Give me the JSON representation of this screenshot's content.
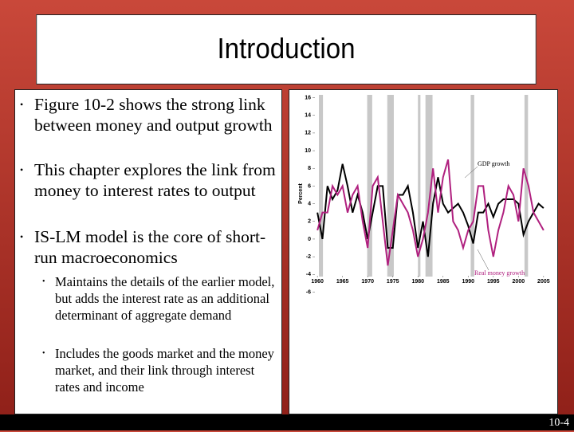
{
  "title": "Introduction",
  "bullets": [
    "Figure 10-2 shows the strong link between money and output growth",
    "This chapter explores the link from money to interest rates to output",
    "IS-LM model is the core of short-run macroeconomics"
  ],
  "sub_bullets": [
    "Maintains the details of the earlier model, but adds the interest rate as an additional determinant of aggregate demand",
    "Includes the goods market and the money market, and their link through interest rates and income"
  ],
  "figure": {
    "type": "line",
    "ylabel": "Percent",
    "x": [
      1960,
      1961,
      1962,
      1963,
      1964,
      1965,
      1966,
      1967,
      1968,
      1969,
      1970,
      1971,
      1972,
      1973,
      1974,
      1975,
      1976,
      1977,
      1978,
      1979,
      1980,
      1981,
      1982,
      1983,
      1984,
      1985,
      1986,
      1987,
      1988,
      1989,
      1990,
      1991,
      1992,
      1993,
      1994,
      1995,
      1996,
      1997,
      1998,
      1999,
      2000,
      2001,
      2002,
      2003,
      2004,
      2005
    ],
    "series": [
      {
        "name": "GDP growth",
        "color": "#000000",
        "values": [
          3,
          0,
          6,
          4.5,
          5.5,
          8.5,
          6,
          3,
          5,
          3,
          0,
          3,
          6,
          6,
          -1,
          -1,
          5,
          5,
          6,
          3,
          -1,
          2,
          -2,
          4,
          7,
          4,
          3,
          3.5,
          4,
          3,
          1.5,
          -0.5,
          3,
          3,
          4,
          2.5,
          4,
          4.5,
          4.5,
          4.5,
          4,
          0.5,
          2,
          3,
          4,
          3.5
        ]
      },
      {
        "name": "Real money growth",
        "color": "#b0207f",
        "values": [
          1,
          3,
          3,
          6,
          5,
          6,
          3,
          5,
          6,
          2,
          -1,
          6,
          7,
          2,
          -3,
          1,
          5,
          4,
          3,
          1,
          -2,
          0,
          3,
          8,
          3,
          7,
          9,
          2,
          1,
          -1,
          1,
          2,
          6,
          6,
          1,
          -2,
          1,
          3,
          6,
          5,
          2,
          8,
          6,
          3,
          2,
          1
        ]
      }
    ],
    "shaded_periods": [
      [
        1960.3,
        1961.1
      ],
      [
        1969.9,
        1970.9
      ],
      [
        1973.9,
        1975.2
      ],
      [
        1980,
        1980.5
      ],
      [
        1981.5,
        1982.9
      ],
      [
        1990.5,
        1991.2
      ],
      [
        2001.2,
        2001.9
      ]
    ],
    "xlim": [
      1959.5,
      2005.5
    ],
    "xticks": [
      1960,
      1965,
      1970,
      1975,
      1980,
      1985,
      1990,
      1995,
      2000,
      2005
    ],
    "ylim": [
      -6.5,
      16.5
    ],
    "yticks": [
      16,
      14,
      12,
      10,
      8,
      6,
      4,
      2,
      0,
      -2,
      -4,
      -6
    ]
  },
  "page_number": "10-4"
}
